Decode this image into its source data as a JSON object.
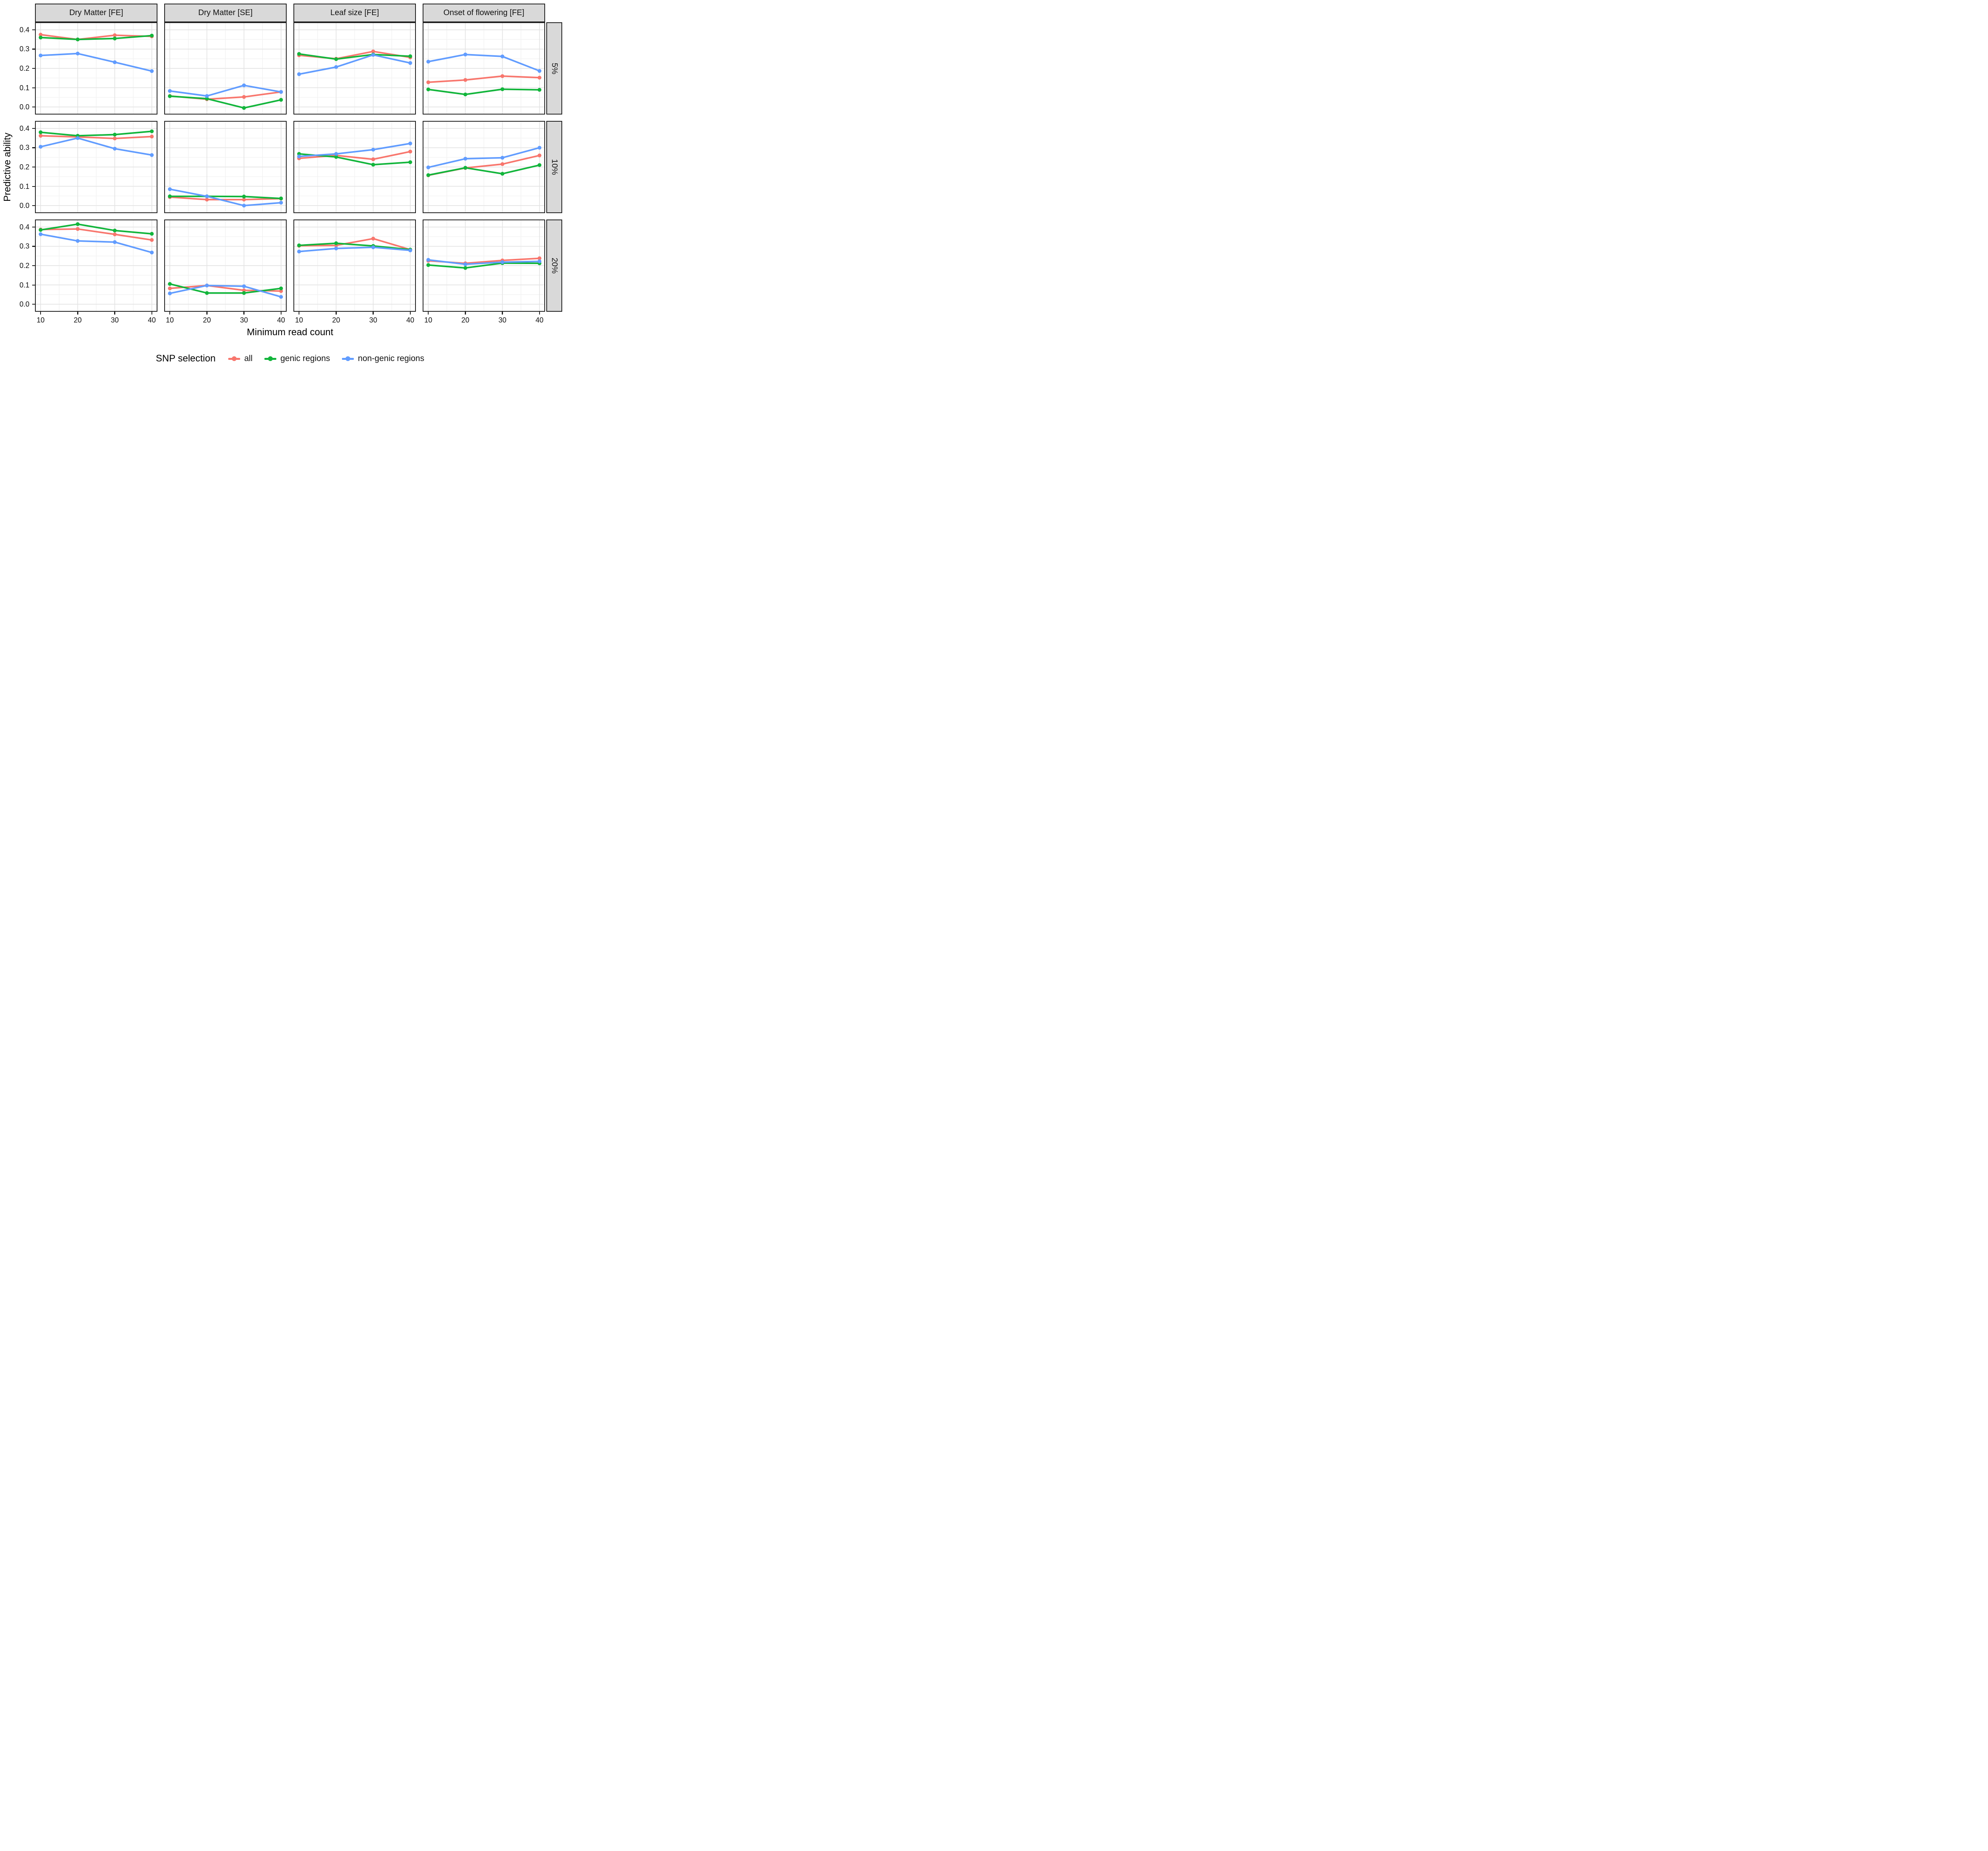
{
  "figure": {
    "y_axis_title": "Predictive ability",
    "x_axis_title": "Minimum read count",
    "legend": {
      "title": "SNP selection",
      "items": [
        {
          "label": "all",
          "color": "#F8766D"
        },
        {
          "label": "genic regions",
          "color": "#12B53B"
        },
        {
          "label": "non-genic regions",
          "color": "#619CFF"
        }
      ]
    }
  },
  "chart_data": {
    "type": "line",
    "x": [
      10,
      20,
      30,
      40
    ],
    "x_tick_labels": [
      "10",
      "20",
      "30",
      "40"
    ],
    "y_tick_labels": [
      "0.4",
      "0.3",
      "0.2",
      "0.1",
      "0.0"
    ],
    "y_major_ticks": [
      0.0,
      0.1,
      0.2,
      0.3,
      0.4
    ],
    "y_minor_ticks": [
      0.05,
      0.15,
      0.25,
      0.35
    ],
    "x_minor_ticks": [
      15,
      25,
      35
    ],
    "ylim": [
      -0.035,
      0.435
    ],
    "xlim_pad_fraction": 0.04,
    "grid": true,
    "legend_position": "bottom",
    "xlabel": "Minimum read count",
    "ylabel": "Predictive ability",
    "col_facets": [
      "Dry Matter [FE]",
      "Dry Matter [SE]",
      "Leaf size [FE]",
      "Onset of flowering [FE]"
    ],
    "row_facets": [
      "5%",
      "10%",
      "20%"
    ],
    "series_names": [
      "all",
      "genic regions",
      "non-genic regions"
    ],
    "colors": {
      "all": "#F8766D",
      "genic regions": "#12B53B",
      "non-genic regions": "#619CFF"
    },
    "panels": [
      {
        "row": "5%",
        "col": "Dry Matter [FE]",
        "series": [
          {
            "name": "all",
            "values": [
              0.375,
              0.35,
              0.372,
              0.366
            ]
          },
          {
            "name": "genic regions",
            "values": [
              0.36,
              0.35,
              0.355,
              0.37
            ]
          },
          {
            "name": "non-genic regions",
            "values": [
              0.267,
              0.277,
              0.232,
              0.186
            ]
          }
        ]
      },
      {
        "row": "5%",
        "col": "Dry Matter [SE]",
        "series": [
          {
            "name": "all",
            "values": [
              0.057,
              0.04,
              0.052,
              0.078
            ]
          },
          {
            "name": "genic regions",
            "values": [
              0.056,
              0.043,
              -0.005,
              0.037
            ]
          },
          {
            "name": "non-genic regions",
            "values": [
              0.083,
              0.057,
              0.112,
              0.078
            ]
          }
        ]
      },
      {
        "row": "5%",
        "col": "Leaf size [FE]",
        "series": [
          {
            "name": "all",
            "values": [
              0.268,
              0.25,
              0.288,
              0.257
            ]
          },
          {
            "name": "genic regions",
            "values": [
              0.275,
              0.248,
              0.272,
              0.263
            ]
          },
          {
            "name": "non-genic regions",
            "values": [
              0.17,
              0.207,
              0.27,
              0.228
            ]
          }
        ]
      },
      {
        "row": "5%",
        "col": "Onset of flowering [FE]",
        "series": [
          {
            "name": "all",
            "values": [
              0.128,
              0.14,
              0.16,
              0.152
            ]
          },
          {
            "name": "genic regions",
            "values": [
              0.091,
              0.065,
              0.092,
              0.089
            ]
          },
          {
            "name": "non-genic regions",
            "values": [
              0.235,
              0.272,
              0.262,
              0.187
            ]
          }
        ]
      },
      {
        "row": "10%",
        "col": "Dry Matter [FE]",
        "series": [
          {
            "name": "all",
            "values": [
              0.362,
              0.356,
              0.348,
              0.358
            ]
          },
          {
            "name": "genic regions",
            "values": [
              0.38,
              0.362,
              0.368,
              0.385
            ]
          },
          {
            "name": "non-genic regions",
            "values": [
              0.305,
              0.35,
              0.295,
              0.262
            ]
          }
        ]
      },
      {
        "row": "10%",
        "col": "Dry Matter [SE]",
        "series": [
          {
            "name": "all",
            "values": [
              0.044,
              0.031,
              0.031,
              0.036
            ]
          },
          {
            "name": "genic regions",
            "values": [
              0.048,
              0.048,
              0.047,
              0.037
            ]
          },
          {
            "name": "non-genic regions",
            "values": [
              0.085,
              0.048,
              0.0,
              0.015
            ]
          }
        ]
      },
      {
        "row": "10%",
        "col": "Leaf size [FE]",
        "series": [
          {
            "name": "all",
            "values": [
              0.245,
              0.26,
              0.24,
              0.28
            ]
          },
          {
            "name": "genic regions",
            "values": [
              0.268,
              0.252,
              0.212,
              0.225
            ]
          },
          {
            "name": "non-genic regions",
            "values": [
              0.255,
              0.268,
              0.29,
              0.322
            ]
          }
        ]
      },
      {
        "row": "10%",
        "col": "Onset of flowering [FE]",
        "series": [
          {
            "name": "all",
            "values": [
              0.157,
              0.195,
              0.215,
              0.26
            ]
          },
          {
            "name": "genic regions",
            "values": [
              0.158,
              0.196,
              0.165,
              0.21
            ]
          },
          {
            "name": "non-genic regions",
            "values": [
              0.198,
              0.243,
              0.248,
              0.3
            ]
          }
        ]
      },
      {
        "row": "20%",
        "col": "Dry Matter [FE]",
        "series": [
          {
            "name": "all",
            "values": [
              0.387,
              0.39,
              0.362,
              0.333
            ]
          },
          {
            "name": "genic regions",
            "values": [
              0.385,
              0.415,
              0.382,
              0.365
            ]
          },
          {
            "name": "non-genic regions",
            "values": [
              0.363,
              0.328,
              0.322,
              0.268
            ]
          }
        ]
      },
      {
        "row": "20%",
        "col": "Dry Matter [SE]",
        "series": [
          {
            "name": "all",
            "values": [
              0.082,
              0.097,
              0.072,
              0.068
            ]
          },
          {
            "name": "genic regions",
            "values": [
              0.105,
              0.058,
              0.058,
              0.082
            ]
          },
          {
            "name": "non-genic regions",
            "values": [
              0.056,
              0.097,
              0.093,
              0.038
            ]
          }
        ]
      },
      {
        "row": "20%",
        "col": "Leaf size [FE]",
        "series": [
          {
            "name": "all",
            "values": [
              0.303,
              0.305,
              0.34,
              0.283
            ]
          },
          {
            "name": "genic regions",
            "values": [
              0.305,
              0.316,
              0.302,
              0.283
            ]
          },
          {
            "name": "non-genic regions",
            "values": [
              0.273,
              0.289,
              0.295,
              0.279
            ]
          }
        ]
      },
      {
        "row": "20%",
        "col": "Onset of flowering [FE]",
        "series": [
          {
            "name": "all",
            "values": [
              0.225,
              0.212,
              0.227,
              0.238
            ]
          },
          {
            "name": "genic regions",
            "values": [
              0.203,
              0.188,
              0.213,
              0.212
            ]
          },
          {
            "name": "non-genic regions",
            "values": [
              0.23,
              0.207,
              0.218,
              0.222
            ]
          }
        ]
      }
    ],
    "style": {
      "strip_bg": "#d9d9d9",
      "panel_border": "#1f1f1f",
      "grid_major": "#e3e3e3",
      "grid_minor": "#f1f1f1",
      "tick_color": "#222222"
    }
  }
}
